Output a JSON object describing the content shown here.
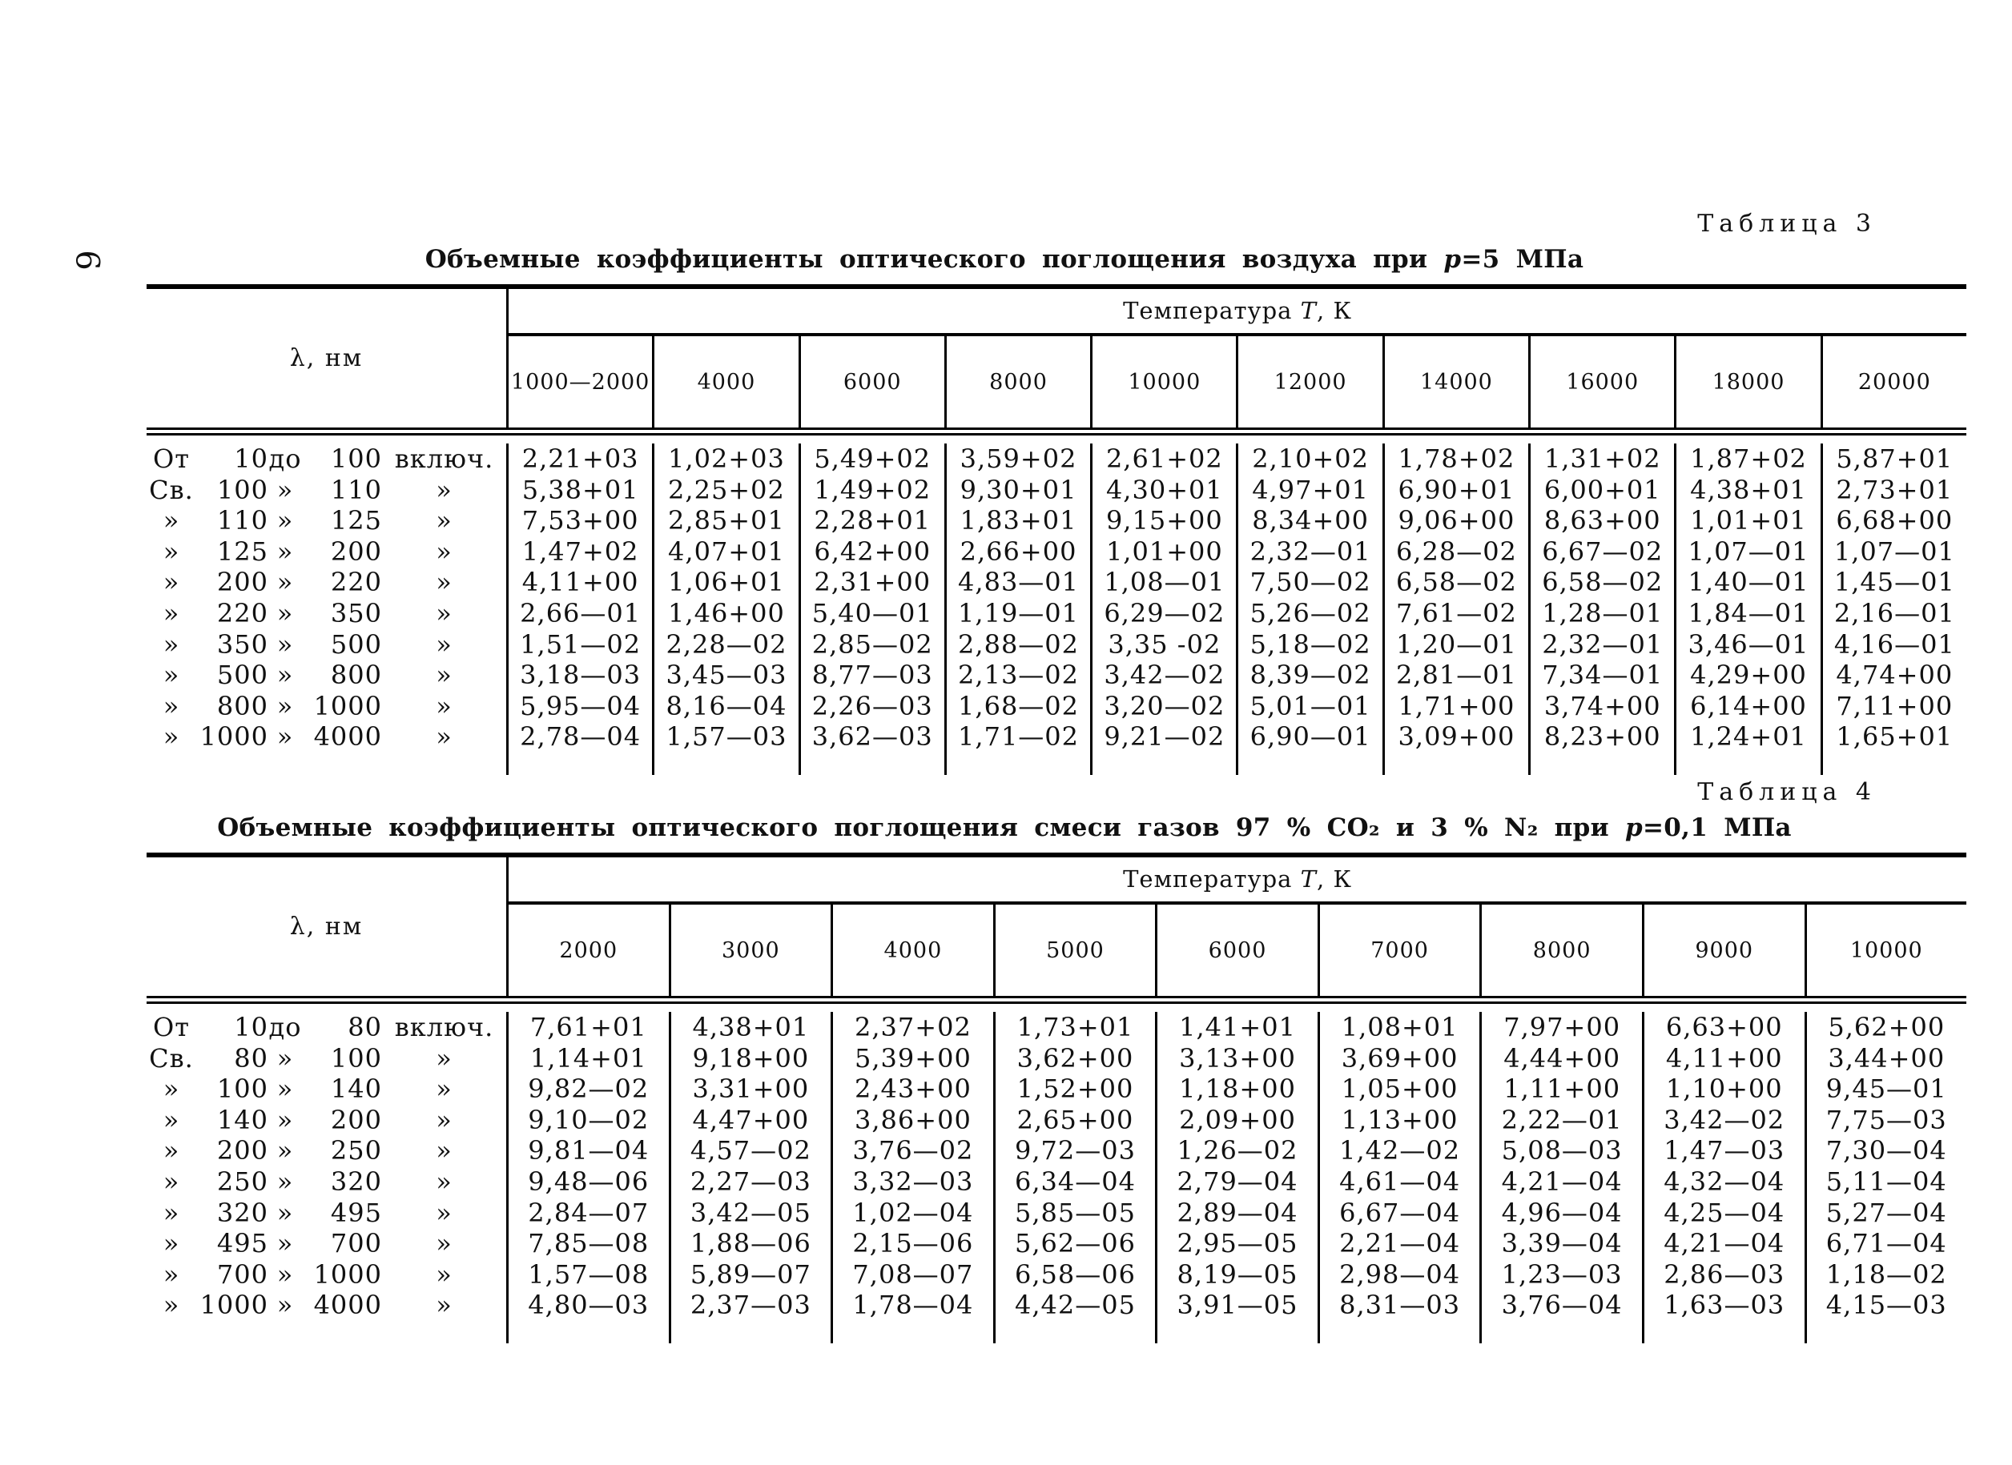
{
  "document": {
    "page_number": "9"
  },
  "table3": {
    "caption": "Таблица 3",
    "title": {
      "before": "Объемные коэффициенты оптического поглощения воздуха при ",
      "var": "p",
      "after": "=5 МПа"
    },
    "lambda_header": "λ, нм",
    "temp_header": {
      "before": "Температура ",
      "var": "T",
      "after": ", К"
    },
    "columns": [
      "1000—2000",
      "4000",
      "6000",
      "8000",
      "10000",
      "12000",
      "14000",
      "16000",
      "18000",
      "20000"
    ],
    "rows": [
      {
        "range": [
          "От",
          "10",
          "до",
          "100",
          "включ."
        ],
        "values": [
          "2,21+03",
          "1,02+03",
          "5,49+02",
          "3,59+02",
          "2,61+02",
          "2,10+02",
          "1,78+02",
          "1,31+02",
          "1,87+02",
          "5,87+01"
        ]
      },
      {
        "range": [
          "Св.",
          "100",
          "»",
          "110",
          "»"
        ],
        "values": [
          "5,38+01",
          "2,25+02",
          "1,49+02",
          "9,30+01",
          "4,30+01",
          "4,97+01",
          "6,90+01",
          "6,00+01",
          "4,38+01",
          "2,73+01"
        ]
      },
      {
        "range": [
          "»",
          "110",
          "»",
          "125",
          "»"
        ],
        "values": [
          "7,53+00",
          "2,85+01",
          "2,28+01",
          "1,83+01",
          "9,15+00",
          "8,34+00",
          "9,06+00",
          "8,63+00",
          "1,01+01",
          "6,68+00"
        ]
      },
      {
        "range": [
          "»",
          "125",
          "»",
          "200",
          "»"
        ],
        "values": [
          "1,47+02",
          "4,07+01",
          "6,42+00",
          "2,66+00",
          "1,01+00",
          "2,32—01",
          "6,28—02",
          "6,67—02",
          "1,07—01",
          "1,07—01"
        ]
      },
      {
        "range": [
          "»",
          "200",
          "»",
          "220",
          "»"
        ],
        "values": [
          "4,11+00",
          "1,06+01",
          "2,31+00",
          "4,83—01",
          "1,08—01",
          "7,50—02",
          "6,58—02",
          "6,58—02",
          "1,40—01",
          "1,45—01"
        ]
      },
      {
        "range": [
          "»",
          "220",
          "»",
          "350",
          "»"
        ],
        "values": [
          "2,66—01",
          "1,46+00",
          "5,40—01",
          "1,19—01",
          "6,29—02",
          "5,26—02",
          "7,61—02",
          "1,28—01",
          "1,84—01",
          "2,16—01"
        ]
      },
      {
        "range": [
          "»",
          "350",
          "»",
          "500",
          "»"
        ],
        "values": [
          "1,51—02",
          "2,28—02",
          "2,85—02",
          "2,88—02",
          "3,35 -02",
          "5,18—02",
          "1,20—01",
          "2,32—01",
          "3,46—01",
          "4,16—01"
        ]
      },
      {
        "range": [
          "»",
          "500",
          "»",
          "800",
          "»"
        ],
        "values": [
          "3,18—03",
          "3,45—03",
          "8,77—03",
          "2,13—02",
          "3,42—02",
          "8,39—02",
          "2,81—01",
          "7,34—01",
          "4,29+00",
          "4,74+00"
        ]
      },
      {
        "range": [
          "»",
          "800",
          "»",
          "1000",
          "»"
        ],
        "values": [
          "5,95—04",
          "8,16—04",
          "2,26—03",
          "1,68—02",
          "3,20—02",
          "5,01—01",
          "1,71+00",
          "3,74+00",
          "6,14+00",
          "7,11+00"
        ]
      },
      {
        "range": [
          "»",
          "1000",
          "»",
          "4000",
          "»"
        ],
        "values": [
          "2,78—04",
          "1,57—03",
          "3,62—03",
          "1,71—02",
          "9,21—02",
          "6,90—01",
          "3,09+00",
          "8,23+00",
          "1,24+01",
          "1,65+01"
        ]
      }
    ]
  },
  "table4": {
    "caption": "Таблица 4",
    "title": {
      "before": "Объемные коэффициенты оптического поглощения смеси газов 97 % CO₂ и 3 % N₂ при ",
      "var": "p",
      "after": "=0,1 МПа"
    },
    "lambda_header": "λ, нм",
    "temp_header": {
      "before": "Температура ",
      "var": "T",
      "after": ", К"
    },
    "columns": [
      "2000",
      "3000",
      "4000",
      "5000",
      "6000",
      "7000",
      "8000",
      "9000",
      "10000"
    ],
    "rows": [
      {
        "range": [
          "От",
          "10",
          "до",
          "80",
          "включ."
        ],
        "values": [
          "7,61+01",
          "4,38+01",
          "2,37+02",
          "1,73+01",
          "1,41+01",
          "1,08+01",
          "7,97+00",
          "6,63+00",
          "5,62+00"
        ]
      },
      {
        "range": [
          "Св.",
          "80",
          "»",
          "100",
          "»"
        ],
        "values": [
          "1,14+01",
          "9,18+00",
          "5,39+00",
          "3,62+00",
          "3,13+00",
          "3,69+00",
          "4,44+00",
          "4,11+00",
          "3,44+00"
        ]
      },
      {
        "range": [
          "»",
          "100",
          "»",
          "140",
          "»"
        ],
        "values": [
          "9,82—02",
          "3,31+00",
          "2,43+00",
          "1,52+00",
          "1,18+00",
          "1,05+00",
          "1,11+00",
          "1,10+00",
          "9,45—01"
        ]
      },
      {
        "range": [
          "»",
          "140",
          "»",
          "200",
          "»"
        ],
        "values": [
          "9,10—02",
          "4,47+00",
          "3,86+00",
          "2,65+00",
          "2,09+00",
          "1,13+00",
          "2,22—01",
          "3,42—02",
          "7,75—03"
        ]
      },
      {
        "range": [
          "»",
          "200",
          "»",
          "250",
          "»"
        ],
        "values": [
          "9,81—04",
          "4,57—02",
          "3,76—02",
          "9,72—03",
          "1,26—02",
          "1,42—02",
          "5,08—03",
          "1,47—03",
          "7,30—04"
        ]
      },
      {
        "range": [
          "»",
          "250",
          "»",
          "320",
          "»"
        ],
        "values": [
          "9,48—06",
          "2,27—03",
          "3,32—03",
          "6,34—04",
          "2,79—04",
          "4,61—04",
          "4,21—04",
          "4,32—04",
          "5,11—04"
        ]
      },
      {
        "range": [
          "»",
          "320",
          "»",
          "495",
          "»"
        ],
        "values": [
          "2,84—07",
          "3,42—05",
          "1,02—04",
          "5,85—05",
          "2,89—04",
          "6,67—04",
          "4,96—04",
          "4,25—04",
          "5,27—04"
        ]
      },
      {
        "range": [
          "»",
          "495",
          "»",
          "700",
          "»"
        ],
        "values": [
          "7,85—08",
          "1,88—06",
          "2,15—06",
          "5,62—06",
          "2,95—05",
          "2,21—04",
          "3,39—04",
          "4,21—04",
          "6,71—04"
        ]
      },
      {
        "range": [
          "»",
          "700",
          "»",
          "1000",
          "»"
        ],
        "values": [
          "1,57—08",
          "5,89—07",
          "7,08—07",
          "6,58—06",
          "8,19—05",
          "2,98—04",
          "1,23—03",
          "2,86—03",
          "1,18—02"
        ]
      },
      {
        "range": [
          "»",
          "1000",
          "»",
          "4000",
          "»"
        ],
        "values": [
          "4,80—03",
          "2,37—03",
          "1,78—04",
          "4,42—05",
          "3,91—05",
          "8,31—03",
          "3,76—04",
          "1,63—03",
          "4,15—03"
        ]
      }
    ]
  }
}
